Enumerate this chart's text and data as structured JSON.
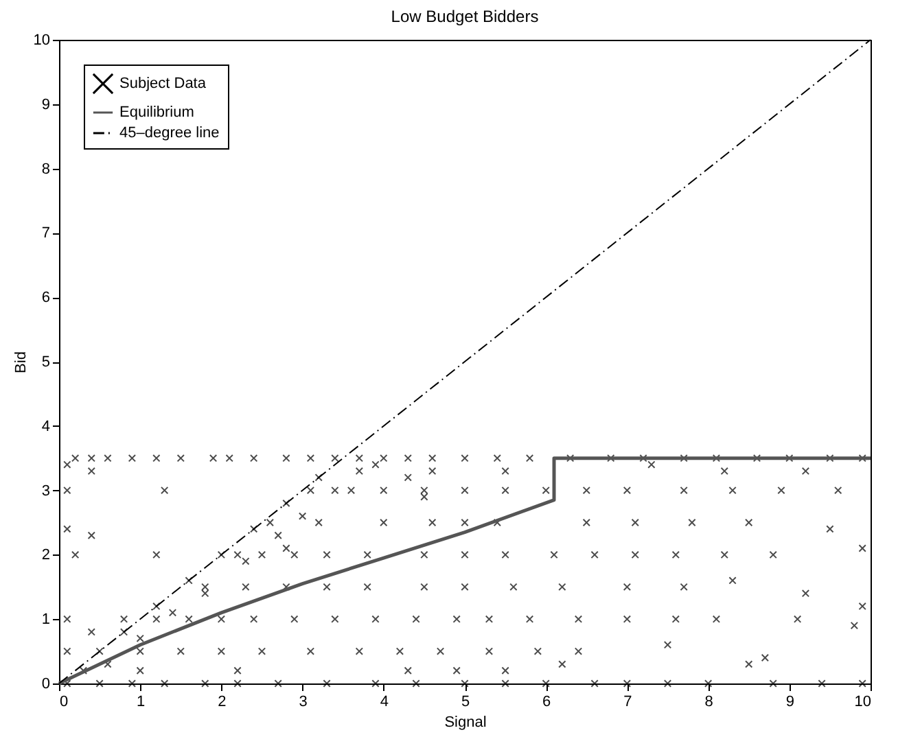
{
  "chart_data": {
    "type": "scatter",
    "title": "Low Budget Bidders",
    "xlabel": "Signal",
    "ylabel": "Bid",
    "xlim": [
      0,
      10
    ],
    "ylim": [
      0,
      10
    ],
    "xticks": [
      0,
      1,
      2,
      3,
      4,
      5,
      6,
      7,
      8,
      9,
      10
    ],
    "yticks": [
      0,
      1,
      2,
      3,
      4,
      5,
      6,
      7,
      8,
      9,
      10
    ],
    "legend": "top left",
    "series": [
      {
        "name": "Subject Data",
        "marker": "cross",
        "color": "#000000",
        "x": [
          0.2,
          0.4,
          0.6,
          0.9,
          1.2,
          1.5,
          1.9,
          2.1,
          2.4,
          2.8,
          3.1,
          3.4,
          3.7,
          4.0,
          4.3,
          4.6,
          5.0,
          5.4,
          5.8,
          6.3,
          6.8,
          7.2,
          7.7,
          8.1,
          8.6,
          9.0,
          9.5,
          9.9,
          0.1,
          0.4,
          3.7,
          4.6,
          5.5,
          7.3,
          8.2,
          9.2,
          0.1,
          1.3,
          3.1,
          3.6,
          4.0,
          4.5,
          5.0,
          5.5,
          6.0,
          6.5,
          7.0,
          7.7,
          8.3,
          8.9,
          9.6,
          0.5,
          0.8,
          1.2,
          1.6,
          2.0,
          2.4,
          2.8,
          3.2,
          1.0,
          1.4,
          1.8,
          2.3,
          2.7,
          3.0,
          3.4,
          3.9,
          4.3,
          4.5,
          2.6,
          3.2,
          4.0,
          4.6,
          5.0,
          5.4,
          6.5,
          7.1,
          7.8,
          8.5,
          9.5,
          0.1,
          0.4,
          1.2,
          0.2,
          2.8,
          2.2,
          2.5,
          2.9,
          3.3,
          3.8,
          4.5,
          5.0,
          5.5,
          6.1,
          6.6,
          7.1,
          7.6,
          8.2,
          8.8,
          9.9,
          1.8,
          2.3,
          2.8,
          3.3,
          3.8,
          4.5,
          5.0,
          5.6,
          6.2,
          7.0,
          7.7,
          8.3,
          9.2,
          9.9,
          0.1,
          0.8,
          1.2,
          1.6,
          2.0,
          2.4,
          2.9,
          3.4,
          3.9,
          4.4,
          4.9,
          5.3,
          5.8,
          6.4,
          7.0,
          7.6,
          8.1,
          9.1,
          9.8,
          1.0,
          1.5,
          2.0,
          2.5,
          3.1,
          3.7,
          4.2,
          4.7,
          5.3,
          5.9,
          6.4,
          7.5,
          8.7,
          0.1,
          0.3,
          0.6,
          1.0,
          2.2,
          4.3,
          4.9,
          5.5,
          6.2,
          8.5,
          0.4,
          0.1,
          0.5,
          0.9,
          1.3,
          1.8,
          2.2,
          2.7,
          3.3,
          3.9,
          4.4,
          5.0,
          5.5,
          6.0,
          6.6,
          7.0,
          7.5,
          8.0,
          8.8,
          9.4,
          9.9
        ],
        "values": [
          3.5,
          3.5,
          3.5,
          3.5,
          3.5,
          3.5,
          3.5,
          3.5,
          3.5,
          3.5,
          3.5,
          3.5,
          3.5,
          3.5,
          3.5,
          3.5,
          3.5,
          3.5,
          3.5,
          3.5,
          3.5,
          3.5,
          3.5,
          3.5,
          3.5,
          3.5,
          3.5,
          3.5,
          3.4,
          3.3,
          3.3,
          3.3,
          3.3,
          3.4,
          3.3,
          3.3,
          3,
          3,
          3,
          3,
          3,
          3,
          3,
          3,
          3,
          3,
          3,
          3,
          3,
          3,
          3,
          0.5,
          0.8,
          1.2,
          1.6,
          2.0,
          2.4,
          2.8,
          3.2,
          0.7,
          1.1,
          1.4,
          1.9,
          2.3,
          2.6,
          3.0,
          3.4,
          3.2,
          2.9,
          2.5,
          2.5,
          2.5,
          2.5,
          2.5,
          2.5,
          2.5,
          2.5,
          2.5,
          2.5,
          2.4,
          2.4,
          2.3,
          2.0,
          2.0,
          2.1,
          2,
          2,
          2,
          2,
          2,
          2,
          2,
          2,
          2,
          2,
          2,
          2,
          2,
          2,
          2.1,
          1.5,
          1.5,
          1.5,
          1.5,
          1.5,
          1.5,
          1.5,
          1.5,
          1.5,
          1.5,
          1.5,
          1.6,
          1.4,
          1.2,
          1,
          1,
          1,
          1,
          1,
          1,
          1,
          1,
          1,
          1,
          1,
          1,
          1,
          1,
          1,
          1,
          1,
          1,
          0.9,
          0.5,
          0.5,
          0.5,
          0.5,
          0.5,
          0.5,
          0.5,
          0.5,
          0.5,
          0.5,
          0.5,
          0.6,
          0.4,
          0.5,
          0.2,
          0.3,
          0.2,
          0.2,
          0.2,
          0.2,
          0.2,
          0.3,
          0.3,
          0.8,
          0,
          0,
          0,
          0,
          0,
          0,
          0,
          0,
          0,
          0,
          0,
          0,
          0,
          0,
          0,
          0,
          0,
          0,
          0,
          0
        ]
      },
      {
        "name": "Equilibrium",
        "type": "line",
        "line_style": "solid",
        "color": "#555555",
        "x": [
          0,
          1,
          2,
          3,
          4,
          5,
          6.1,
          6.1,
          10
        ],
        "values": [
          0,
          0.6,
          1.1,
          1.55,
          1.95,
          2.35,
          2.85,
          3.5,
          3.5
        ]
      },
      {
        "name": "45–degree line",
        "type": "line",
        "line_style": "dashed",
        "color": "#000000",
        "x": [
          0,
          10
        ],
        "values": [
          0,
          10
        ]
      }
    ]
  }
}
